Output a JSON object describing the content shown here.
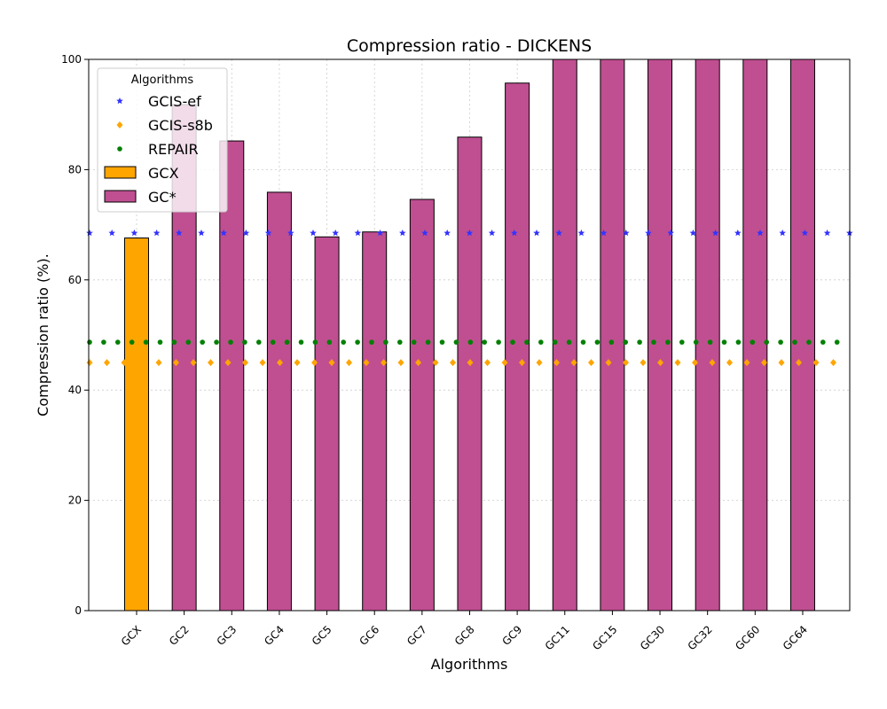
{
  "chart_data": {
    "type": "bar",
    "title": "Compression ratio -  DICKENS",
    "xlabel": "Algorithms",
    "ylabel": "Compression ratio (%).",
    "ylim": [
      0,
      100
    ],
    "yticks": [
      0,
      20,
      40,
      60,
      80,
      100
    ],
    "grid": true,
    "categories": [
      "GCX",
      "GC2",
      "GC3",
      "GC4",
      "GC5",
      "GC6",
      "GC7",
      "GC8",
      "GC9",
      "GC11",
      "GC15",
      "GC30",
      "GC32",
      "GC60",
      "GC64"
    ],
    "bar_series": [
      {
        "name": "GCX",
        "color": "#FFA500",
        "values": [
          67.6,
          null,
          null,
          null,
          null,
          null,
          null,
          null,
          null,
          null,
          null,
          null,
          null,
          null,
          null
        ]
      },
      {
        "name": "GC*",
        "color": "#BF4F91",
        "values": [
          null,
          91.8,
          85.2,
          75.9,
          67.8,
          68.7,
          74.6,
          85.9,
          95.7,
          100,
          100,
          100,
          100,
          100,
          100
        ]
      }
    ],
    "reference_lines": [
      {
        "name": "GCIS-ef",
        "color": "#3333FF",
        "marker": "star-icon",
        "value": 68.5
      },
      {
        "name": "GCIS-s8b",
        "color": "#FFA500",
        "marker": "diamond-icon",
        "value": 45.0
      },
      {
        "name": "REPAIR",
        "color": "#008000",
        "marker": "circle-icon",
        "value": 48.7
      }
    ],
    "legend": {
      "title": "Algorithms",
      "placement": "top-left",
      "entries": [
        "GCIS-ef",
        "GCIS-s8b",
        "REPAIR",
        "GCX",
        "GC*"
      ]
    }
  }
}
